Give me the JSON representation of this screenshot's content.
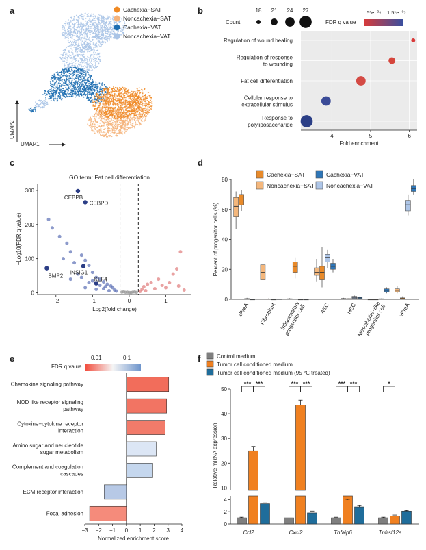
{
  "panel_letters": {
    "a": "a",
    "b": "b",
    "c": "c",
    "d": "d",
    "e": "e",
    "f": "f"
  },
  "chart_data": [
    {
      "panel": "a",
      "type": "scatter",
      "title": "",
      "xlabel": "UMAP1",
      "ylabel": "UMAP2",
      "legend": {
        "position": "top-right",
        "entries": [
          {
            "name": "Cachexia−SAT",
            "color": "#f08a24"
          },
          {
            "name": "Noncachexia−SAT",
            "color": "#f5b37a"
          },
          {
            "name": "Cachexia−VAT",
            "color": "#1f6fb2"
          },
          {
            "name": "Noncachexia−VAT",
            "color": "#a9c4e6"
          }
        ]
      }
    },
    {
      "panel": "b",
      "type": "scatter",
      "title": "",
      "xlabel": "Fold enrichment",
      "ylabel": "",
      "xlim": [
        3.2,
        6.2
      ],
      "xticks": [
        "4",
        "5",
        "6"
      ],
      "size_legend": {
        "title": "Count",
        "values": [
          "18",
          "21",
          "24",
          "27"
        ]
      },
      "color_legend": {
        "title": "FDR q value",
        "labels": [
          "5*e⁻⁰⁶",
          "1.5*e⁻⁰⁵"
        ]
      },
      "categories": [
        "Regulation of wound healing",
        "Regulation of response to wounding",
        "Fat cell differentiation",
        "Cellular response to extracellular stimulus",
        "Response to polyliposaccharide"
      ],
      "x": [
        6.1,
        5.55,
        4.75,
        3.85,
        3.35
      ],
      "count": [
        18,
        21,
        24,
        24,
        27
      ],
      "colors": [
        "#d93a3a",
        "#d5453c",
        "#d44a44",
        "#3a4b97",
        "#2b3f86"
      ]
    },
    {
      "panel": "c",
      "type": "scatter",
      "title": "GO term: Fat cell differentiation",
      "xlabel": "Log2(fold change)",
      "ylabel": "−Log10(FDR q value)",
      "xlim": [
        -2.5,
        1.7
      ],
      "ylim": [
        -5,
        320
      ],
      "xticks": [
        "−2",
        "−1",
        "0",
        "1"
      ],
      "yticks": [
        "0",
        "100",
        "200",
        "300"
      ],
      "thresholds": {
        "vertical": [
          -0.25,
          0.25
        ],
        "horizontal": 2
      },
      "labeled_points": [
        {
          "label": "CEBPB",
          "x": -1.4,
          "y": 298
        },
        {
          "label": "CEBPD",
          "x": -1.2,
          "y": 265
        },
        {
          "label": "BMP2",
          "x": -2.25,
          "y": 72
        },
        {
          "label": "INSIG1",
          "x": -1.25,
          "y": 78
        },
        {
          "label": "KLF4",
          "x": -0.9,
          "y": 28
        }
      ],
      "points_down": [
        [
          -2.2,
          215
        ],
        [
          -2.1,
          190
        ],
        [
          -1.9,
          165
        ],
        [
          -1.7,
          145
        ],
        [
          -1.6,
          120
        ],
        [
          -1.8,
          100
        ],
        [
          -1.5,
          88
        ],
        [
          -1.3,
          110
        ],
        [
          -1.2,
          95
        ],
        [
          -1.1,
          80
        ],
        [
          -1.0,
          60
        ],
        [
          -0.9,
          45
        ],
        [
          -0.8,
          40
        ],
        [
          -0.7,
          32
        ],
        [
          -1.4,
          55
        ],
        [
          -1.6,
          40
        ],
        [
          -1.1,
          30
        ],
        [
          -0.6,
          25
        ],
        [
          -0.5,
          20
        ],
        [
          -0.45,
          15
        ],
        [
          -0.7,
          12
        ],
        [
          -0.9,
          10
        ],
        [
          -1.2,
          15
        ],
        [
          -0.4,
          8
        ],
        [
          -0.55,
          6
        ],
        [
          -0.35,
          5
        ],
        [
          -0.8,
          22
        ],
        [
          -1.0,
          35
        ],
        [
          -1.3,
          45
        ],
        [
          -0.65,
          18
        ]
      ],
      "points_up": [
        [
          1.4,
          120
        ],
        [
          1.3,
          70
        ],
        [
          1.2,
          55
        ],
        [
          0.8,
          40
        ],
        [
          0.6,
          30
        ],
        [
          0.5,
          25
        ],
        [
          0.4,
          18
        ],
        [
          0.9,
          22
        ],
        [
          1.0,
          15
        ],
        [
          0.35,
          10
        ],
        [
          0.7,
          12
        ],
        [
          1.1,
          30
        ],
        [
          1.35,
          20
        ],
        [
          0.45,
          6
        ],
        [
          0.3,
          4
        ],
        [
          1.5,
          8
        ]
      ],
      "points_ns": [
        [
          -0.2,
          2
        ],
        [
          -0.1,
          1.5
        ],
        [
          0.0,
          1
        ],
        [
          0.1,
          2
        ],
        [
          0.2,
          1.2
        ],
        [
          -0.15,
          3
        ],
        [
          0.15,
          2.5
        ],
        [
          0.05,
          0.8
        ],
        [
          -0.05,
          1.8
        ]
      ],
      "colors": {
        "down": "#5b6fb5",
        "down_label": "#2c3e86",
        "up": "#e07b7b",
        "ns": "#9a9a9a"
      }
    },
    {
      "panel": "d",
      "type": "box",
      "title": "",
      "xlabel": "",
      "ylabel": "Percent of progenitor cells (%)",
      "ylim": [
        0,
        80
      ],
      "yticks": [
        "0",
        "20",
        "40",
        "60",
        "80"
      ],
      "legend": {
        "position": "top",
        "entries": [
          {
            "name": "Cachexia−SAT",
            "color": "#e88a2a"
          },
          {
            "name": "Cachexia−VAT",
            "color": "#2e76b8"
          },
          {
            "name": "Noncachexia−SAT",
            "color": "#f4b77c"
          },
          {
            "name": "Noncachexia−VAT",
            "color": "#aec6e8"
          }
        ]
      },
      "categories": [
        "sPreA",
        "Fibroblast",
        "Inflammatory progenitor cell",
        "ASC",
        "HSC",
        "Mesothelial−like progenitor cell",
        "vPreA"
      ],
      "boxes": [
        [
          [
            47,
            55,
            62,
            68,
            72
          ],
          [
            59,
            63,
            67,
            70,
            73
          ],
          [
            0,
            0,
            0.3,
            0.5,
            1
          ],
          [
            0,
            0,
            0,
            0,
            0
          ]
        ],
        [
          [
            8,
            13,
            18,
            23,
            40
          ],
          [
            0,
            0,
            0.2,
            0.3,
            0.6
          ],
          [
            0,
            0,
            0,
            0,
            0
          ],
          [
            0,
            0,
            0.1,
            0.2,
            0.3
          ]
        ],
        [
          [
            0,
            0,
            0.2,
            0.4,
            0.8
          ],
          [
            14,
            18,
            22,
            25,
            28
          ],
          [
            0,
            0,
            0,
            0,
            0
          ],
          [
            0,
            0,
            0,
            0,
            0.2
          ]
        ],
        [
          [
            12,
            16,
            18,
            21,
            27
          ],
          [
            8,
            13,
            18,
            22,
            35
          ],
          [
            21,
            25,
            28,
            30,
            33
          ],
          [
            18,
            20,
            22,
            24,
            27
          ]
        ],
        [
          [
            0,
            0,
            0.3,
            0.6,
            1
          ],
          [
            0,
            0,
            0.2,
            0.5,
            0.8
          ],
          [
            0,
            0.5,
            1,
            2,
            2.5
          ],
          [
            0,
            0.5,
            1,
            1.5,
            2
          ]
        ],
        [
          [
            0,
            0,
            0,
            0,
            0
          ],
          [
            0,
            0,
            0,
            0,
            0
          ],
          [
            0,
            0,
            0.2,
            0.4,
            0.6
          ],
          [
            4,
            5,
            6,
            7,
            8
          ]
        ],
        [
          [
            4,
            5,
            6,
            7,
            9
          ],
          [
            0,
            0,
            0.5,
            1,
            2
          ],
          [
            56,
            59,
            63,
            66,
            70
          ],
          [
            70,
            72,
            74,
            76,
            80
          ]
        ]
      ]
    },
    {
      "panel": "e",
      "type": "bar",
      "orientation": "horizontal",
      "title": "",
      "xlabel": "Normalized enrichment score",
      "xlim": [
        -3,
        4
      ],
      "xticks": [
        "−3",
        "−2",
        "−1",
        "0",
        "1",
        "2",
        "3",
        "4"
      ],
      "color_legend": {
        "title": "FDR q value",
        "labels": [
          "0.01",
          "0.1"
        ]
      },
      "categories": [
        "Chemokine signaling pathway",
        "NOD like receptor signaling pathway",
        "Cytokine−cytokine receptor interaction",
        "Amino sugar and neucleotide sugar metabolism",
        "Complement and coagulation cascades",
        "ECM receptor interaction",
        "Focal adhesion"
      ],
      "values": [
        3.05,
        2.9,
        2.8,
        2.15,
        1.9,
        -1.6,
        -2.65
      ],
      "colors": [
        "#f26d5b",
        "#f27463",
        "#f27b6a",
        "#dce6f5",
        "#c5d7ee",
        "#b7c9e6",
        "#f58b7b"
      ]
    },
    {
      "panel": "f",
      "type": "bar",
      "title": "",
      "xlabel": "",
      "ylabel": "Relative mRNA expression",
      "ylim": [
        0,
        50
      ],
      "yticks_upper": [
        "10",
        "20",
        "30",
        "40",
        "50"
      ],
      "yticks_lower": [
        "0",
        "2",
        "4"
      ],
      "axis_break": [
        4.6,
        9
      ],
      "legend": {
        "position": "top-left",
        "entries": [
          {
            "name": "Control medium",
            "color": "#7f7f7f"
          },
          {
            "name": "Tumor cell conditioned medium",
            "color": "#f08020"
          },
          {
            "name": "Tumor cell conditioned medium (95 ℃ treated)",
            "color": "#1f6d9b"
          }
        ]
      },
      "categories": [
        "Ccl2",
        "Cxcl2",
        "Tnfaip6",
        "Tnfrsf12a"
      ],
      "series": [
        {
          "name": "Control medium",
          "values": [
            1.0,
            1.0,
            1.0,
            1.0
          ],
          "errors": [
            0.1,
            0.3,
            0.1,
            0.1
          ]
        },
        {
          "name": "Tumor cell conditioned medium",
          "values": [
            25.0,
            43.5,
            5.2,
            1.3
          ],
          "errors": [
            1.8,
            2.0,
            0.2,
            0.15
          ]
        },
        {
          "name": "Tumor cell conditioned medium (95 ℃ treated)",
          "values": [
            3.3,
            1.8,
            2.8,
            2.1
          ],
          "errors": [
            0.15,
            0.3,
            0.2,
            0.1
          ]
        }
      ],
      "significance": [
        {
          "category": "Ccl2",
          "marks": [
            "***",
            "***"
          ]
        },
        {
          "category": "Cxcl2",
          "marks": [
            "***",
            "***"
          ]
        },
        {
          "category": "Tnfaip6",
          "marks": [
            "***",
            "***"
          ]
        },
        {
          "category": "Tnfrsf12a",
          "marks": [
            "*"
          ]
        }
      ]
    }
  ]
}
